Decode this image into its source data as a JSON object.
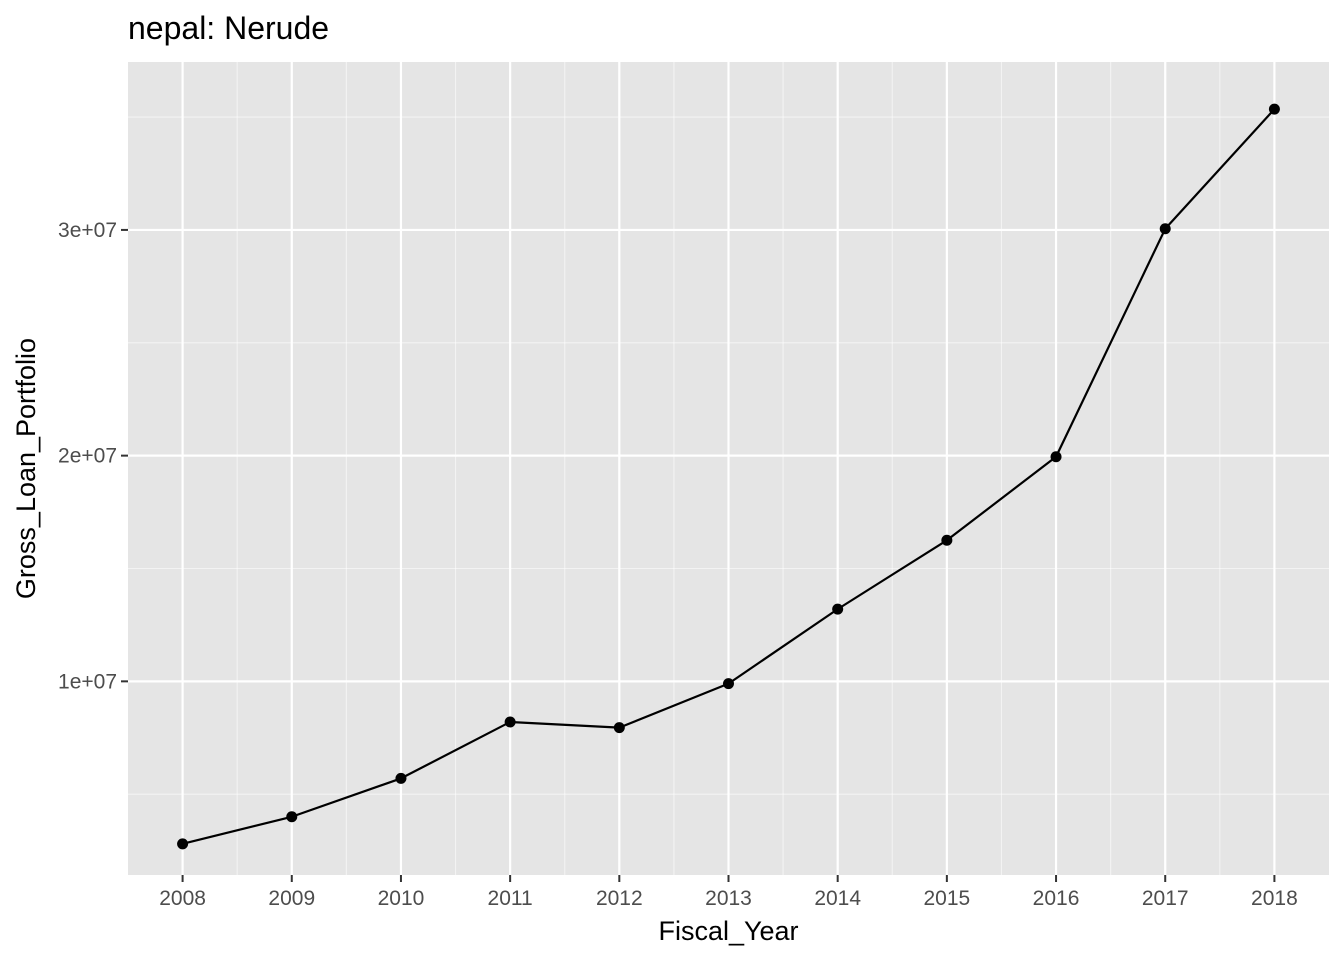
{
  "chart_data": {
    "type": "line",
    "title": "nepal:  Nerude",
    "xlabel": "Fiscal_Year",
    "ylabel": "Gross_Loan_Portfolio",
    "x": [
      2008,
      2009,
      2010,
      2011,
      2012,
      2013,
      2014,
      2015,
      2016,
      2017,
      2018
    ],
    "series": [
      {
        "values": [
          2800000,
          4000000,
          5700000,
          8200000,
          7950000,
          9900000,
          13200000,
          16250000,
          19950000,
          30050000,
          35350000
        ]
      }
    ],
    "y_ticks": [
      10000000,
      20000000,
      30000000
    ],
    "y_tick_labels": [
      "1e+07",
      "2e+07",
      "3e+07"
    ],
    "xlim": [
      2007.5,
      2018.5
    ],
    "ylim": [
      1420000,
      37440000
    ],
    "grid": true,
    "legend": "none",
    "colors": {
      "panel": "#e5e5e5",
      "grid_major": "#ffffff",
      "line": "#000000",
      "point": "#000000",
      "tick_text": "#4d4d4d"
    }
  }
}
